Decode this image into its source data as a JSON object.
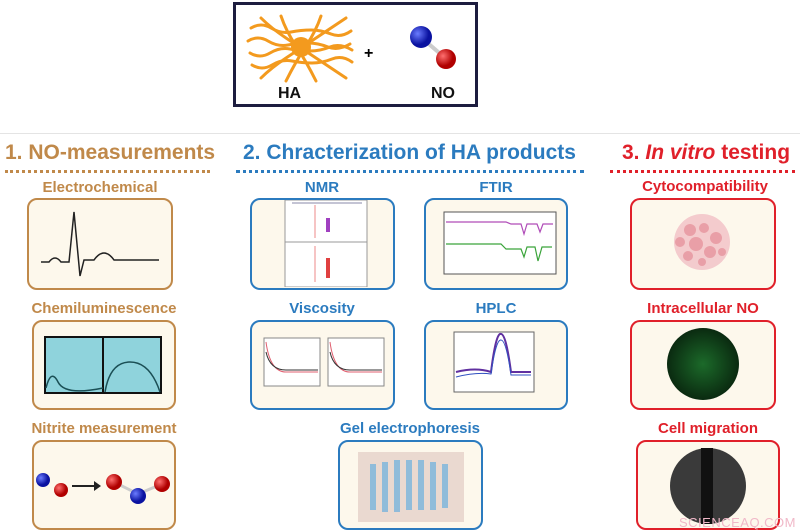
{
  "top": {
    "ha_label": "HA",
    "plus": "+",
    "no_label": "NO"
  },
  "sections": [
    {
      "title": "1. NO-measurements",
      "color": "#c0894a",
      "items": [
        "Electrochemical",
        "Chemiluminescence",
        "Nitrite measurement"
      ]
    },
    {
      "title": "2. Chracterization of HA products",
      "color": "#2b7bbf",
      "items": [
        "NMR",
        "FTIR",
        "Viscosity",
        "HPLC",
        "Gel electrophoresis"
      ]
    },
    {
      "title_num": "3. ",
      "title_italic": "In vitro",
      "title_rest": " testing",
      "color": "#e0202a",
      "items": [
        "Cytocompatibility",
        "Intracellular NO",
        "Cell migration"
      ]
    }
  ],
  "watermark": "SCIENCEAQ.COM"
}
